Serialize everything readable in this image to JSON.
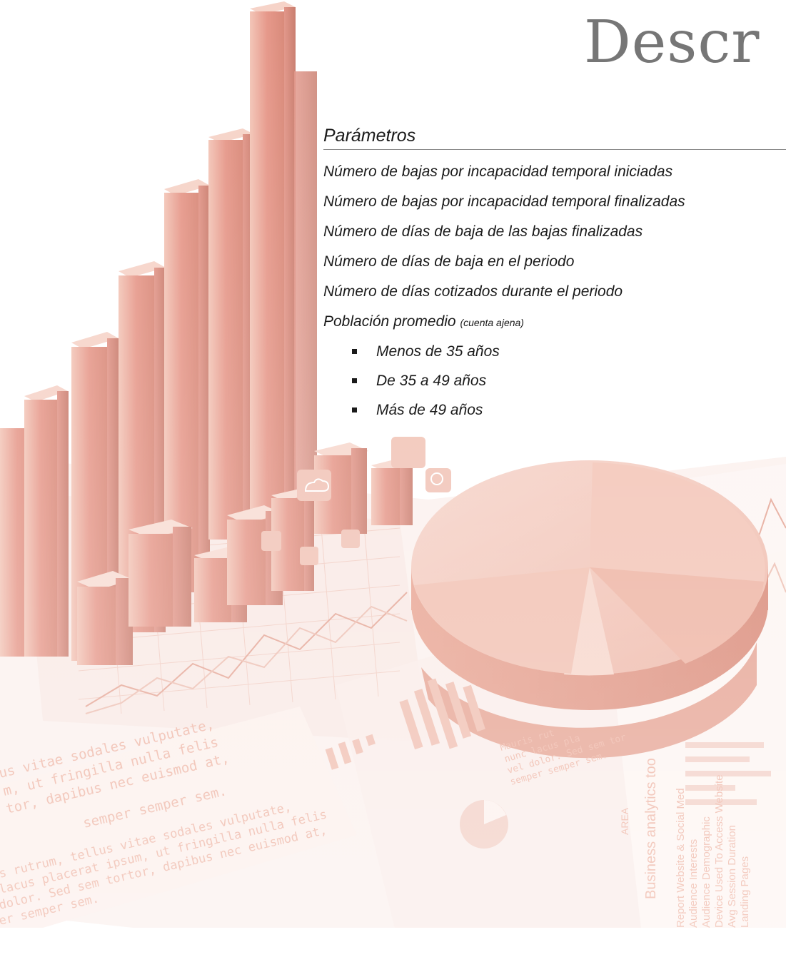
{
  "title": "Descr",
  "section": {
    "heading": "Parámetros",
    "items": [
      "Número de bajas por incapacidad temporal iniciadas",
      "Número de bajas por incapacidad temporal finalizadas",
      "Número de días de baja de las bajas finalizadas",
      "Número de días de baja en el periodo",
      "Número de días cotizados durante el periodo"
    ],
    "population": {
      "label": "Población promedio",
      "note": "(cuenta ajena)"
    },
    "subitems": [
      "Menos de 35 años",
      "De 35 a 49 años",
      "Más de 49 años"
    ]
  },
  "background": {
    "accent_color": "#e7a08c",
    "text_snippets": [
      "us vitae sodales vulputate,",
      "m, ut fringilla nulla felis",
      "tor, dapibus nec euismod at,",
      "semper semper sem.",
      "s rutrum, tellus vitae sodales vulputate,",
      "lacus placerat ipsum, ut fringilla nulla felis",
      "dolor. Sed sem tortor, dapibus nec euismod at,",
      "er semper sem.",
      "Mauris rut",
      "nunc lacus pla",
      "vel dolor. Sed sem tor",
      "semper semper sem.",
      "AREA",
      "Business analytics too",
      "Report Website & Social Med",
      "Audience Interests",
      "Audience Demographic",
      "Device Used To Access Website",
      "Avg Session Duration",
      "Landing Pages"
    ]
  }
}
